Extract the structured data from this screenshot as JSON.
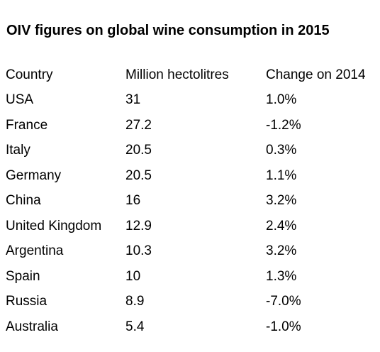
{
  "title": "OIV figures on global wine consumption in 2015",
  "headers": {
    "country": "Country",
    "volume": "Million hectolitres",
    "change": "Change on 2014"
  },
  "rows": [
    {
      "country": "USA",
      "volume": "31",
      "change": "1.0%"
    },
    {
      "country": "France",
      "volume": "27.2",
      "change": "-1.2%"
    },
    {
      "country": "Italy",
      "volume": "20.5",
      "change": "0.3%"
    },
    {
      "country": "Germany",
      "volume": "20.5",
      "change": "1.1%"
    },
    {
      "country": "China",
      "volume": "16",
      "change": "3.2%"
    },
    {
      "country": "United Kingdom",
      "volume": "12.9",
      "change": "2.4%"
    },
    {
      "country": "Argentina",
      "volume": "10.3",
      "change": "3.2%"
    },
    {
      "country": "Spain",
      "volume": "10",
      "change": "1.3%"
    },
    {
      "country": "Russia",
      "volume": "8.9",
      "change": "-7.0%"
    },
    {
      "country": "Australia",
      "volume": "5.4",
      "change": "-1.0%"
    }
  ]
}
